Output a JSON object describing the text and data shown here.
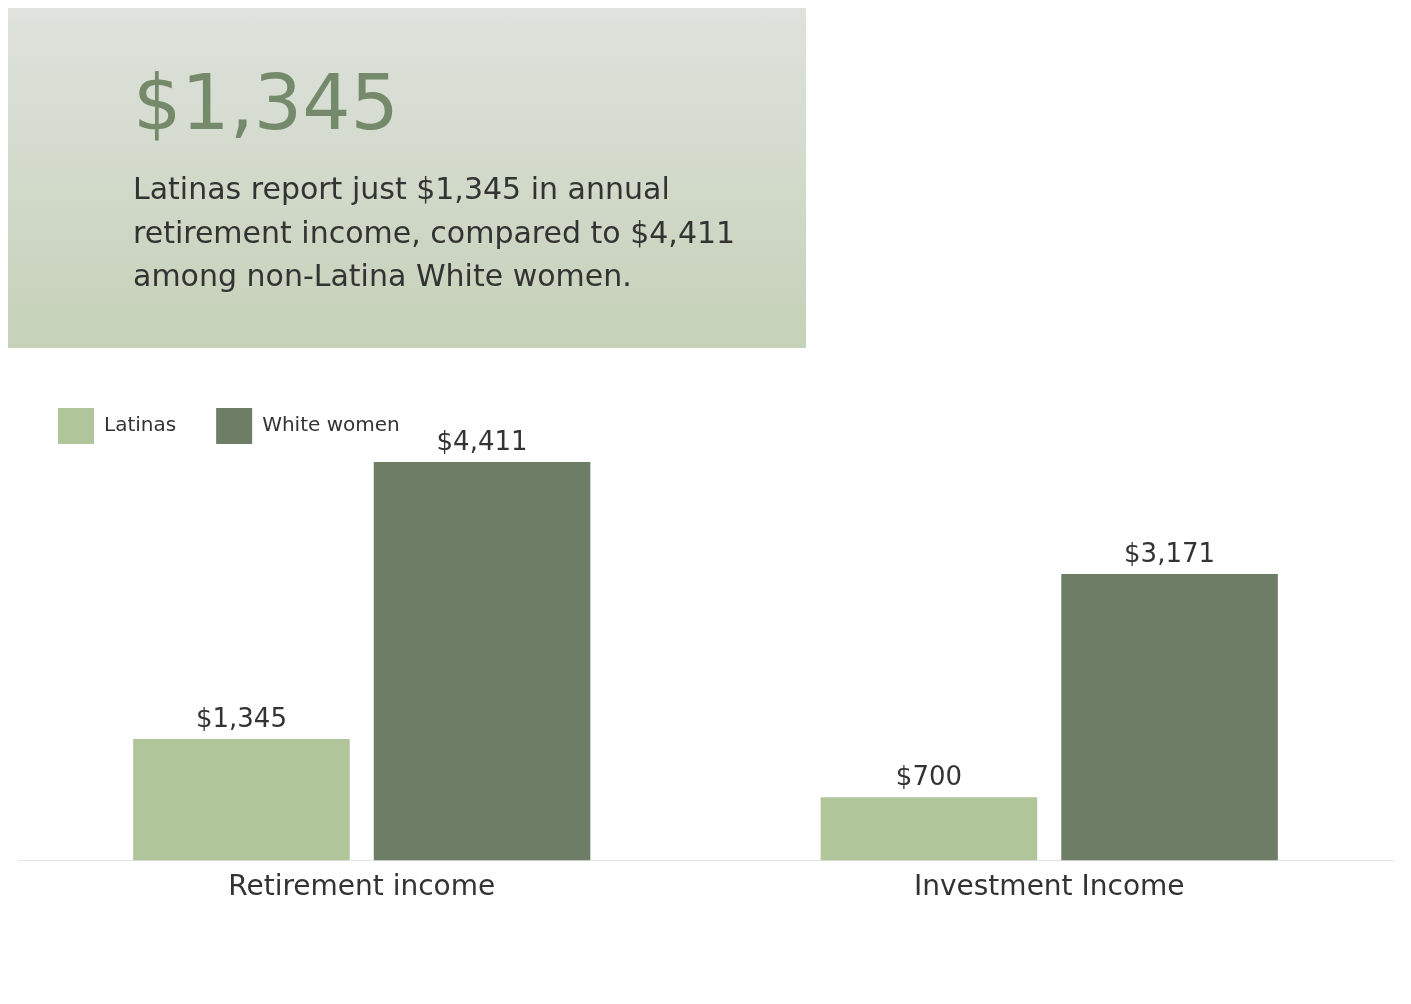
{
  "chart_data": {
    "type": "bar",
    "title": "$1,345",
    "subtitle": "Latinas report just $1,345 in annual retirement income, compared to $4,411 among non-Latina White women.",
    "categories": [
      "Retirement income",
      "Investment Income"
    ],
    "series": [
      {
        "name": "Latinas",
        "color": "#b1c59a",
        "values": [
          1345,
          700
        ],
        "value_labels": [
          "$1,345",
          "$700"
        ]
      },
      {
        "name": "White women",
        "color": "#6e7d65",
        "values": [
          4411,
          3171
        ],
        "value_labels": [
          "$4,411",
          "$3,171"
        ]
      }
    ],
    "legend": "top left",
    "grid": false
  }
}
